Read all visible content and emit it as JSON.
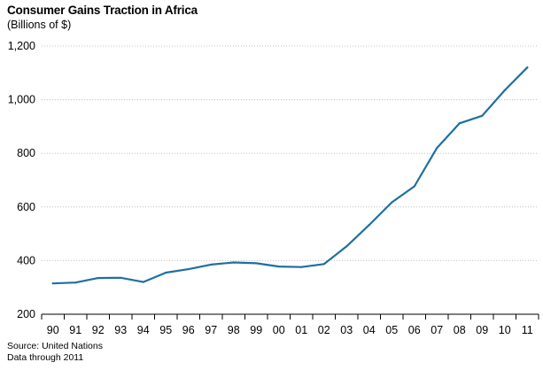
{
  "header": {
    "title": "Consumer Gains Traction in Africa",
    "subtitle": "(Billions of $)"
  },
  "footer": {
    "source": "Source: United Nations",
    "note": "Data through 2011"
  },
  "colors": {
    "line": "#1f6fa0",
    "grid": "#bfbfbf",
    "axis": "#000000"
  },
  "chart_data": {
    "type": "line",
    "title": "Consumer Gains Traction in Africa",
    "subtitle": "(Billions of $)",
    "xlabel": "",
    "ylabel": "",
    "ylim": [
      200,
      1200
    ],
    "yticks": [
      200,
      400,
      600,
      800,
      1000,
      1200
    ],
    "ytick_labels": [
      "200",
      "400",
      "600",
      "800",
      "1,000",
      "1,200"
    ],
    "grid": true,
    "categories": [
      "90",
      "91",
      "92",
      "93",
      "94",
      "95",
      "96",
      "97",
      "98",
      "99",
      "00",
      "01",
      "02",
      "03",
      "04",
      "05",
      "06",
      "07",
      "08",
      "09",
      "10",
      "11"
    ],
    "series": [
      {
        "values": [
          315,
          318,
          335,
          336,
          320,
          355,
          368,
          385,
          393,
          390,
          378,
          376,
          387,
          453,
          533,
          617,
          677,
          820,
          912,
          940,
          1035,
          1120
        ]
      }
    ]
  }
}
